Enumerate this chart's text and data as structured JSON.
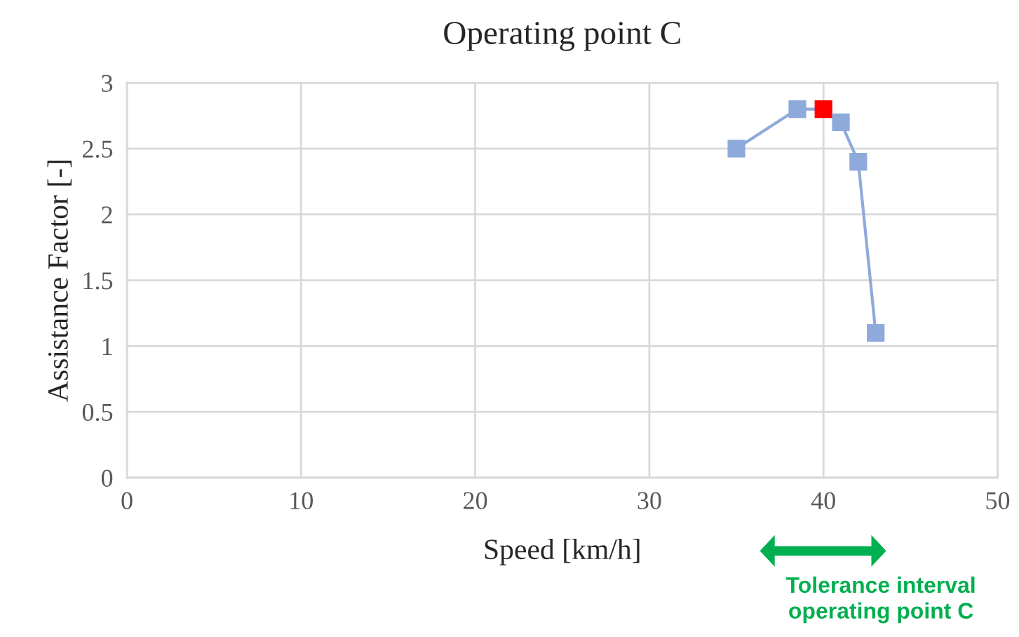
{
  "chart_data": {
    "type": "line",
    "title": "Operating point C",
    "xlabel": "Speed [km/h]",
    "ylabel": "Assistance Factor [-]",
    "x": [
      35,
      38.5,
      40,
      41,
      42,
      43
    ],
    "series": [
      {
        "color": "#8eaadb",
        "colors": [
          "#8eaadb",
          "#8eaadb",
          "#ff0000",
          "#8eaadb",
          "#8eaadb",
          "#8eaadb"
        ],
        "values": [
          2.5,
          2.8,
          2.8,
          2.7,
          2.4,
          1.1
        ]
      }
    ],
    "xlim": [
      0,
      50
    ],
    "xticks": [
      0,
      10,
      20,
      30,
      40,
      50
    ],
    "ylim": [
      0,
      3
    ],
    "yticks": [
      0,
      0.5,
      1,
      1.5,
      2,
      2.5,
      3
    ],
    "grid": true,
    "marker": "square",
    "line_style": "solid",
    "annotations": [
      "Tolerance interval\noperating point C"
    ]
  }
}
